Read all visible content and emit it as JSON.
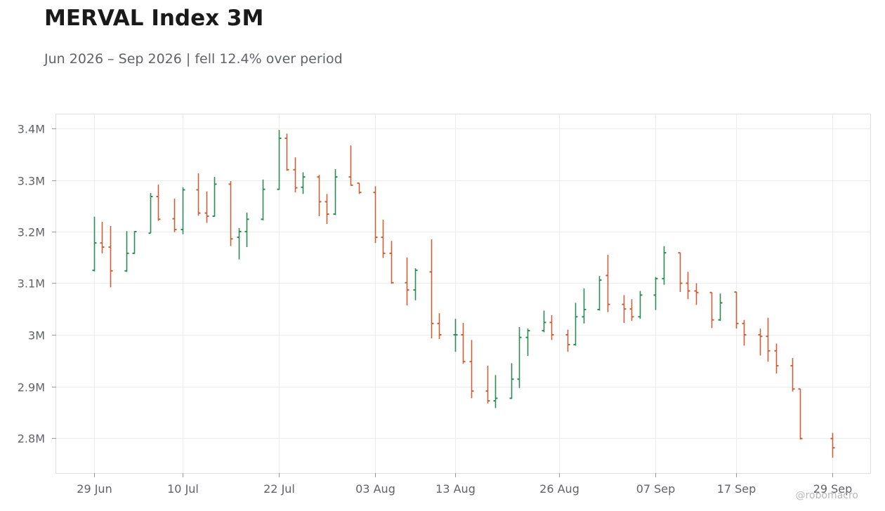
{
  "title": "MERVAL Index 3M",
  "subtitle": "Jun 2026 – Sep 2026 | fell 12.4% over period",
  "watermark": "@robomacro",
  "colors": {
    "up": "#2e8b57",
    "down": "#c8603a",
    "grid": "#ececec",
    "frame": "#dddddd",
    "text": "#5f6368",
    "title": "#1a1a1a"
  },
  "chart_data": {
    "type": "ohlc",
    "title": "MERVAL Index 3M",
    "subtitle": "Jun 2026 – Sep 2026 | fell 12.4% over period",
    "xlabel": "",
    "ylabel": "",
    "ylim": [
      2.735,
      3.43
    ],
    "grid": true,
    "legend": "none",
    "x_ticks": [
      {
        "label": "29 Jun",
        "day": 0
      },
      {
        "label": "10 Jul",
        "day": 11
      },
      {
        "label": "22 Jul",
        "day": 23
      },
      {
        "label": "03 Aug",
        "day": 35
      },
      {
        "label": "13 Aug",
        "day": 45
      },
      {
        "label": "26 Aug",
        "day": 58
      },
      {
        "label": "07 Sep",
        "day": 70
      },
      {
        "label": "17 Sep",
        "day": 80
      },
      {
        "label": "29 Sep",
        "day": 92
      }
    ],
    "y_ticks": [
      {
        "label": "2.8M",
        "value": 2.8
      },
      {
        "label": "2.9M",
        "value": 2.9
      },
      {
        "label": "3M",
        "value": 3.0
      },
      {
        "label": "3.1M",
        "value": 3.1
      },
      {
        "label": "3.2M",
        "value": 3.2
      },
      {
        "label": "3.3M",
        "value": 3.3
      },
      {
        "label": "3.4M",
        "value": 3.4
      }
    ],
    "value_unit": "millions",
    "series": [
      {
        "day": 0,
        "date": "29 Jun",
        "open": 3.125,
        "high": 3.229,
        "low": 3.123,
        "close": 3.178
      },
      {
        "day": 1,
        "date": "30 Jun",
        "open": 3.178,
        "high": 3.219,
        "low": 3.158,
        "close": 3.17
      },
      {
        "day": 2,
        "date": "01 Jul",
        "open": 3.17,
        "high": 3.211,
        "low": 3.092,
        "close": 3.124
      },
      {
        "day": 4,
        "date": "03 Jul",
        "open": 3.124,
        "high": 3.201,
        "low": 3.122,
        "close": 3.158
      },
      {
        "day": 5,
        "date": "06 Jul",
        "open": 3.158,
        "high": 3.201,
        "low": 3.157,
        "close": 3.2
      },
      {
        "day": 7,
        "date": "07 Jul",
        "open": 3.197,
        "high": 3.275,
        "low": 3.197,
        "close": 3.268
      },
      {
        "day": 8,
        "date": "08 Jul",
        "open": 3.268,
        "high": 3.291,
        "low": 3.221,
        "close": 3.224
      },
      {
        "day": 10,
        "date": "09 Jul",
        "open": 3.225,
        "high": 3.264,
        "low": 3.199,
        "close": 3.204
      },
      {
        "day": 11,
        "date": "10 Jul",
        "open": 3.204,
        "high": 3.286,
        "low": 3.195,
        "close": 3.281
      },
      {
        "day": 13,
        "date": "13 Jul",
        "open": 3.281,
        "high": 3.313,
        "low": 3.231,
        "close": 3.236
      },
      {
        "day": 14,
        "date": "14 Jul",
        "open": 3.236,
        "high": 3.278,
        "low": 3.217,
        "close": 3.23
      },
      {
        "day": 15,
        "date": "15 Jul",
        "open": 3.23,
        "high": 3.306,
        "low": 3.229,
        "close": 3.292
      },
      {
        "day": 17,
        "date": "16 Jul",
        "open": 3.292,
        "high": 3.298,
        "low": 3.172,
        "close": 3.186
      },
      {
        "day": 18,
        "date": "17 Jul",
        "open": 3.189,
        "high": 3.207,
        "low": 3.146,
        "close": 3.2
      },
      {
        "day": 19,
        "date": "20 Jul",
        "open": 3.2,
        "high": 3.237,
        "low": 3.17,
        "close": 3.224
      },
      {
        "day": 21,
        "date": "21 Jul",
        "open": 3.224,
        "high": 3.301,
        "low": 3.222,
        "close": 3.282
      },
      {
        "day": 23,
        "date": "22 Jul",
        "open": 3.282,
        "high": 3.397,
        "low": 3.281,
        "close": 3.381
      },
      {
        "day": 24,
        "date": "23 Jul",
        "open": 3.381,
        "high": 3.39,
        "low": 3.318,
        "close": 3.32
      },
      {
        "day": 25,
        "date": "24 Jul",
        "open": 3.32,
        "high": 3.344,
        "low": 3.276,
        "close": 3.285
      },
      {
        "day": 26,
        "date": "27 Jul",
        "open": 3.286,
        "high": 3.315,
        "low": 3.273,
        "close": 3.306
      },
      {
        "day": 28,
        "date": "28 Jul",
        "open": 3.306,
        "high": 3.31,
        "low": 3.23,
        "close": 3.258
      },
      {
        "day": 29,
        "date": "29 Jul",
        "open": 3.258,
        "high": 3.273,
        "low": 3.215,
        "close": 3.234
      },
      {
        "day": 30,
        "date": "30 Jul",
        "open": 3.234,
        "high": 3.321,
        "low": 3.232,
        "close": 3.306
      },
      {
        "day": 32,
        "date": "31 Jul",
        "open": 3.306,
        "high": 3.367,
        "low": 3.289,
        "close": 3.29
      },
      {
        "day": 33,
        "date": "31 Jul",
        "open": 3.294,
        "high": 3.294,
        "low": 3.273,
        "close": 3.276
      },
      {
        "day": 35,
        "date": "03 Aug",
        "open": 3.276,
        "high": 3.288,
        "low": 3.178,
        "close": 3.189
      },
      {
        "day": 36,
        "date": "04 Aug",
        "open": 3.189,
        "high": 3.223,
        "low": 3.149,
        "close": 3.158
      },
      {
        "day": 37,
        "date": "05 Aug",
        "open": 3.158,
        "high": 3.182,
        "low": 3.099,
        "close": 3.101
      },
      {
        "day": 39,
        "date": "06 Aug",
        "open": 3.101,
        "high": 3.15,
        "low": 3.057,
        "close": 3.087
      },
      {
        "day": 40,
        "date": "07 Aug",
        "open": 3.087,
        "high": 3.129,
        "low": 3.067,
        "close": 3.125
      },
      {
        "day": 42,
        "date": "10 Aug",
        "open": 3.122,
        "high": 3.185,
        "low": 2.993,
        "close": 3.022
      },
      {
        "day": 43,
        "date": "11 Aug",
        "open": 3.022,
        "high": 3.042,
        "low": 2.992,
        "close": 3.0
      },
      {
        "day": 45,
        "date": "13 Aug",
        "open": 3.0,
        "high": 3.031,
        "low": 2.967,
        "close": 3.0
      },
      {
        "day": 46,
        "date": "14 Aug",
        "open": 3.0,
        "high": 3.023,
        "low": 2.944,
        "close": 2.948
      },
      {
        "day": 47,
        "date": "17 Aug",
        "open": 2.948,
        "high": 2.99,
        "low": 2.877,
        "close": 2.891
      },
      {
        "day": 49,
        "date": "18 Aug",
        "open": 2.891,
        "high": 2.94,
        "low": 2.867,
        "close": 2.872
      },
      {
        "day": 50,
        "date": "19 Aug",
        "open": 2.872,
        "high": 2.922,
        "low": 2.858,
        "close": 2.877
      },
      {
        "day": 52,
        "date": "20 Aug",
        "open": 2.877,
        "high": 2.945,
        "low": 2.876,
        "close": 2.914
      },
      {
        "day": 53,
        "date": "21 Aug",
        "open": 2.914,
        "high": 3.015,
        "low": 2.897,
        "close": 2.995
      },
      {
        "day": 54,
        "date": "24 Aug",
        "open": 2.995,
        "high": 3.012,
        "low": 2.959,
        "close": 3.008
      },
      {
        "day": 56,
        "date": "25 Aug",
        "open": 3.008,
        "high": 3.047,
        "low": 3.005,
        "close": 3.024
      },
      {
        "day": 57,
        "date": "26 Aug",
        "open": 3.024,
        "high": 3.038,
        "low": 2.99,
        "close": 3.0
      },
      {
        "day": 59,
        "date": "27 Aug",
        "open": 3.0,
        "high": 3.01,
        "low": 2.967,
        "close": 2.981
      },
      {
        "day": 60,
        "date": "28 Aug",
        "open": 2.981,
        "high": 3.062,
        "low": 2.979,
        "close": 3.035
      },
      {
        "day": 61,
        "date": "31 Aug",
        "open": 3.035,
        "high": 3.09,
        "low": 3.022,
        "close": 3.049
      },
      {
        "day": 63,
        "date": "01 Sep",
        "open": 3.049,
        "high": 3.114,
        "low": 3.047,
        "close": 3.106
      },
      {
        "day": 64,
        "date": "02 Sep",
        "open": 3.115,
        "high": 3.155,
        "low": 3.044,
        "close": 3.059
      },
      {
        "day": 66,
        "date": "03 Sep",
        "open": 3.059,
        "high": 3.077,
        "low": 3.023,
        "close": 3.05
      },
      {
        "day": 67,
        "date": "04 Sep",
        "open": 3.05,
        "high": 3.069,
        "low": 3.027,
        "close": 3.035
      },
      {
        "day": 68,
        "date": "07 Sep",
        "open": 3.035,
        "high": 3.085,
        "low": 3.031,
        "close": 3.077
      },
      {
        "day": 70,
        "date": "08 Sep",
        "open": 3.077,
        "high": 3.112,
        "low": 3.048,
        "close": 3.109
      },
      {
        "day": 71,
        "date": "09 Sep",
        "open": 3.109,
        "high": 3.172,
        "low": 3.097,
        "close": 3.159
      },
      {
        "day": 73,
        "date": "10 Sep",
        "open": 3.159,
        "high": 3.159,
        "low": 3.083,
        "close": 3.1
      },
      {
        "day": 74,
        "date": "11 Sep",
        "open": 3.1,
        "high": 3.122,
        "low": 3.069,
        "close": 3.085
      },
      {
        "day": 75,
        "date": "14 Sep",
        "open": 3.085,
        "high": 3.1,
        "low": 3.058,
        "close": 3.082
      },
      {
        "day": 77,
        "date": "15 Sep",
        "open": 3.082,
        "high": 3.082,
        "low": 3.013,
        "close": 3.029
      },
      {
        "day": 78,
        "date": "16 Sep",
        "open": 3.029,
        "high": 3.08,
        "low": 3.027,
        "close": 3.062
      },
      {
        "day": 80,
        "date": "17 Sep",
        "open": 3.083,
        "high": 3.083,
        "low": 3.012,
        "close": 3.022
      },
      {
        "day": 81,
        "date": "18 Sep",
        "open": 3.022,
        "high": 3.029,
        "low": 2.979,
        "close": 3.0
      },
      {
        "day": 83,
        "date": "21 Sep",
        "open": 3.0,
        "high": 3.012,
        "low": 2.96,
        "close": 2.997
      },
      {
        "day": 84,
        "date": "22 Sep",
        "open": 2.997,
        "high": 3.033,
        "low": 2.948,
        "close": 2.969
      },
      {
        "day": 85,
        "date": "23 Sep",
        "open": 2.969,
        "high": 2.983,
        "low": 2.925,
        "close": 2.94
      },
      {
        "day": 87,
        "date": "24 Sep",
        "open": 2.94,
        "high": 2.955,
        "low": 2.89,
        "close": 2.895
      },
      {
        "day": 88,
        "date": "25 Sep",
        "open": 2.895,
        "high": 2.895,
        "low": 2.797,
        "close": 2.799
      },
      {
        "day": 92,
        "date": "29 Sep",
        "open": 2.799,
        "high": 2.81,
        "low": 2.762,
        "close": 2.781
      }
    ]
  }
}
